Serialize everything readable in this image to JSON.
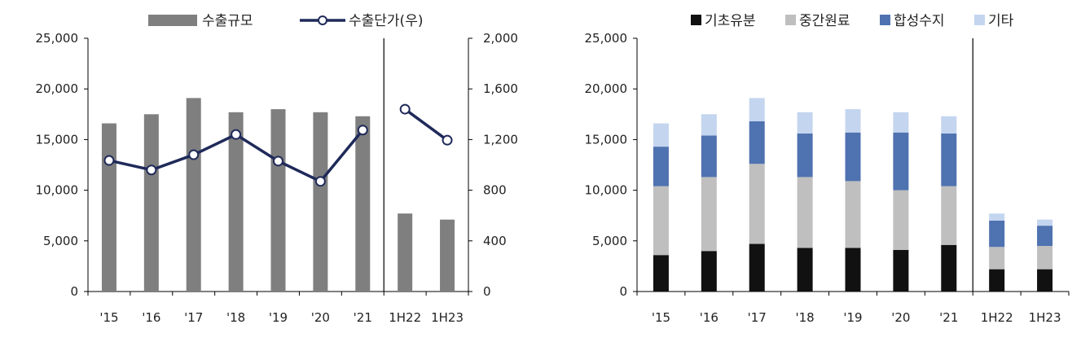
{
  "charts": [
    {
      "chart_data": {
        "type": "bar+line",
        "categories": [
          "'15",
          "'16",
          "'17",
          "'18",
          "'19",
          "'20",
          "'21",
          "1H22",
          "1H23"
        ],
        "series": [
          {
            "name": "수출규모",
            "type": "bar",
            "axis": "left",
            "color": "#7f7f7f",
            "values": [
              16600,
              17500,
              19100,
              17700,
              18000,
              17700,
              17300,
              7700,
              7100
            ]
          },
          {
            "name": "수출단가(우)",
            "type": "line",
            "axis": "right",
            "color": "#1f2a5a",
            "values": [
              1035,
              960,
              1080,
              1240,
              1030,
              870,
              1275,
              1440,
              1195
            ],
            "line_breaks_after_index": 6
          }
        ],
        "y_left": {
          "min": 0,
          "max": 25000,
          "ticks": [
            "0",
            "5,000",
            "10,000",
            "15,000",
            "20,000",
            "25,000"
          ]
        },
        "y_right": {
          "min": 0,
          "max": 2000,
          "ticks": [
            "0",
            "400",
            "800",
            "1,200",
            "1,600",
            "2,000"
          ]
        },
        "divider_after_index": 6,
        "legend_position": "top-center",
        "grid": false
      }
    },
    {
      "chart_data": {
        "type": "stacked-bar",
        "categories": [
          "'15",
          "'16",
          "'17",
          "'18",
          "'19",
          "'20",
          "'21",
          "1H22",
          "1H23"
        ],
        "series": [
          {
            "name": "기초유분",
            "color": "#111111",
            "values": [
              3600,
              4000,
              4700,
              4300,
              4300,
              4100,
              4600,
              2200,
              2200
            ]
          },
          {
            "name": "중간원료",
            "color": "#bfbfbf",
            "values": [
              6800,
              7300,
              7900,
              7000,
              6600,
              5900,
              5800,
              2200,
              2300
            ]
          },
          {
            "name": "합성수지",
            "color": "#4f72b0",
            "values": [
              3900,
              4100,
              4200,
              4300,
              4800,
              5700,
              5200,
              2600,
              2000
            ]
          },
          {
            "name": "기타",
            "color": "#c4d5ef",
            "values": [
              2300,
              2100,
              2300,
              2100,
              2300,
              2000,
              1700,
              700,
              600
            ]
          }
        ],
        "y": {
          "min": 0,
          "max": 25000,
          "ticks": [
            "0",
            "5,000",
            "10,000",
            "15,000",
            "20,000",
            "25,000"
          ]
        },
        "divider_after_index": 6,
        "legend_position": "top-center",
        "grid": false
      }
    }
  ]
}
